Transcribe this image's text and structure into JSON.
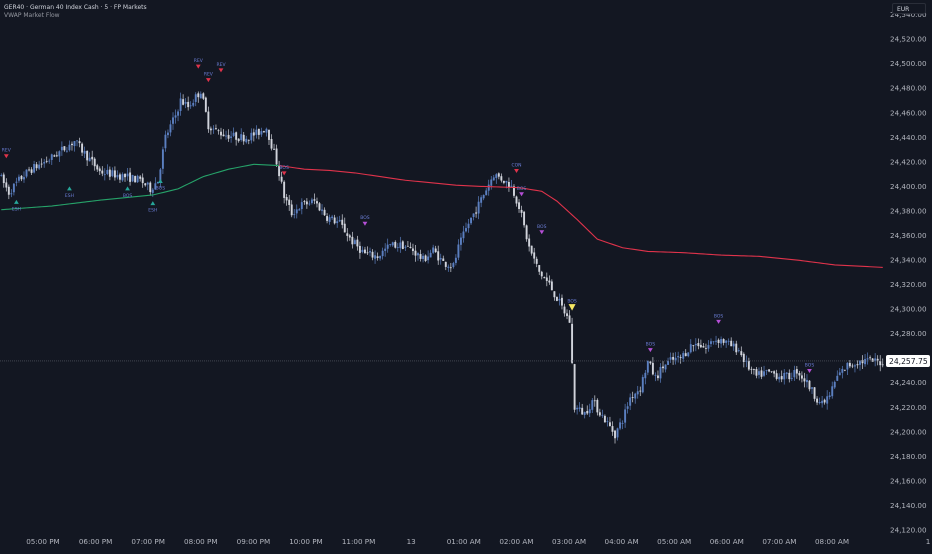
{
  "header": {
    "symbol_line": "GER40 · German 40 Index Cash · 5 · FP Markets",
    "indicator_name": "VWAP Market Flow",
    "currency": "EUR"
  },
  "colors": {
    "background": "#131722",
    "candle_up": "#5b7fc0",
    "candle_down": "#d1d4dc",
    "vwap_bull": "#26a269",
    "vwap_bear": "#e0334b",
    "signal_up": "#26a69a",
    "signal_down": "#e0334b",
    "signal_label": "#6c7fd8",
    "signal_purple": "#b54fd6",
    "highlight": "#f5e663",
    "axis_text": "#b2b5be"
  },
  "chart_data": {
    "type": "candlestick",
    "y_axis": {
      "ticks": [
        "24,540.00",
        "24,520.00",
        "24,500.00",
        "24,480.00",
        "24,460.00",
        "24,440.00",
        "24,420.00",
        "24,400.00",
        "24,380.00",
        "24,360.00",
        "24,340.00",
        "24,320.00",
        "24,300.00",
        "24,280.00",
        "24,260.00",
        "24,240.00",
        "24,220.00",
        "24,200.00",
        "24,180.00",
        "24,160.00",
        "24,140.00",
        "24,120.00"
      ],
      "range": [
        24120,
        24547
      ]
    },
    "x_axis": {
      "ticks": [
        "05:00 PM",
        "06:00 PM",
        "07:00 PM",
        "08:00 PM",
        "09:00 PM",
        "10:00 PM",
        "11:00 PM",
        "13",
        "01:00 AM",
        "02:00 AM",
        "03:00 AM",
        "04:00 AM",
        "05:00 AM",
        "06:00 AM",
        "07:00 AM",
        "08:00 AM",
        "1"
      ]
    },
    "current_price": {
      "value": 24257.75,
      "label": "24,257.75"
    },
    "price_anchors": [
      [
        0,
        24410
      ],
      [
        4,
        24395
      ],
      [
        8,
        24405
      ],
      [
        12,
        24413
      ],
      [
        20,
        24422
      ],
      [
        30,
        24437
      ],
      [
        40,
        24412
      ],
      [
        50,
        24408
      ],
      [
        56,
        24405
      ],
      [
        60,
        24398
      ],
      [
        63,
        24405
      ],
      [
        66,
        24440
      ],
      [
        70,
        24458
      ],
      [
        72,
        24470
      ],
      [
        75,
        24465
      ],
      [
        80,
        24478
      ],
      [
        83,
        24450
      ],
      [
        86,
        24445
      ],
      [
        90,
        24442
      ],
      [
        95,
        24440
      ],
      [
        98,
        24440
      ],
      [
        102,
        24443
      ],
      [
        106,
        24448
      ],
      [
        110,
        24420
      ],
      [
        113,
        24392
      ],
      [
        116,
        24378
      ],
      [
        120,
        24385
      ],
      [
        125,
        24388
      ],
      [
        130,
        24375
      ],
      [
        135,
        24370
      ],
      [
        140,
        24355
      ],
      [
        145,
        24345
      ],
      [
        150,
        24343
      ],
      [
        155,
        24352
      ],
      [
        160,
        24352
      ],
      [
        164,
        24348
      ],
      [
        168,
        24340
      ],
      [
        172,
        24348
      ],
      [
        176,
        24338
      ],
      [
        180,
        24335
      ],
      [
        182,
        24350
      ],
      [
        186,
        24370
      ],
      [
        190,
        24385
      ],
      [
        193,
        24398
      ],
      [
        196,
        24410
      ],
      [
        200,
        24405
      ],
      [
        203,
        24400
      ],
      [
        206,
        24384
      ],
      [
        210,
        24350
      ],
      [
        214,
        24330
      ],
      [
        218,
        24320
      ],
      [
        222,
        24305
      ],
      [
        226,
        24290
      ],
      [
        228,
        24220
      ],
      [
        232,
        24215
      ],
      [
        235,
        24225
      ],
      [
        240,
        24210
      ],
      [
        244,
        24198
      ],
      [
        247,
        24210
      ],
      [
        250,
        24228
      ],
      [
        254,
        24236
      ],
      [
        257,
        24257
      ],
      [
        260,
        24244
      ],
      [
        263,
        24253
      ],
      [
        266,
        24258
      ],
      [
        270,
        24260
      ],
      [
        274,
        24270
      ],
      [
        277,
        24272
      ],
      [
        280,
        24268
      ],
      [
        283,
        24275
      ],
      [
        286,
        24275
      ],
      [
        290,
        24270
      ],
      [
        293,
        24267
      ],
      [
        296,
        24255
      ],
      [
        300,
        24245
      ],
      [
        303,
        24248
      ],
      [
        306,
        24248
      ],
      [
        310,
        24245
      ],
      [
        313,
        24245
      ],
      [
        316,
        24250
      ],
      [
        320,
        24240
      ],
      [
        323,
        24230
      ],
      [
        326,
        24222
      ],
      [
        329,
        24230
      ],
      [
        332,
        24245
      ],
      [
        336,
        24254
      ],
      [
        340,
        24257
      ],
      [
        344,
        24258
      ],
      [
        349,
        24257
      ]
    ],
    "vwap_anchors": [
      [
        0,
        24381
      ],
      [
        20,
        24384
      ],
      [
        40,
        24389
      ],
      [
        60,
        24393
      ],
      [
        70,
        24398
      ],
      [
        80,
        24408
      ],
      [
        90,
        24414
      ],
      [
        100,
        24418
      ],
      [
        110,
        24417
      ],
      [
        120,
        24414
      ],
      [
        130,
        24413
      ],
      [
        140,
        24411
      ],
      [
        150,
        24408
      ],
      [
        160,
        24405
      ],
      [
        170,
        24403
      ],
      [
        180,
        24401
      ],
      [
        190,
        24400
      ],
      [
        205,
        24399
      ],
      [
        214,
        24396
      ],
      [
        220,
        24388
      ],
      [
        228,
        24373
      ],
      [
        236,
        24357
      ],
      [
        246,
        24350
      ],
      [
        256,
        24347
      ],
      [
        270,
        24346
      ],
      [
        285,
        24344
      ],
      [
        300,
        24343
      ],
      [
        315,
        24340
      ],
      [
        330,
        24336
      ],
      [
        349,
        24334
      ]
    ],
    "vwap_color_switch_index": 110,
    "num_candles": 350,
    "signals": [
      {
        "index": 2,
        "price": 24425,
        "label": "REV",
        "dir": "down",
        "color": "#e0334b"
      },
      {
        "index": 6,
        "price": 24387,
        "label": "ESH",
        "dir": "up",
        "color": "#26a69a"
      },
      {
        "index": 27,
        "price": 24398,
        "label": "ESH",
        "dir": "up",
        "color": "#26a69a"
      },
      {
        "index": 50,
        "price": 24398,
        "label": "BOS",
        "dir": "up",
        "color": "#26a69a"
      },
      {
        "index": 60,
        "price": 24386,
        "label": "ESH",
        "dir": "up",
        "color": "#26a69a"
      },
      {
        "index": 63,
        "price": 24404,
        "label": "BOS",
        "dir": "up",
        "color": "#26a69a"
      },
      {
        "index": 78,
        "price": 24498,
        "label": "REV",
        "dir": "down",
        "color": "#e0334b"
      },
      {
        "index": 82,
        "price": 24487,
        "label": "REV",
        "dir": "down",
        "color": "#e0334b"
      },
      {
        "index": 87,
        "price": 24495,
        "label": "REV",
        "dir": "down",
        "color": "#e0334b"
      },
      {
        "index": 112,
        "price": 24411,
        "label": "BOS",
        "dir": "down",
        "color": "#e0334b"
      },
      {
        "index": 144,
        "price": 24370,
        "label": "BOS",
        "dir": "down",
        "color": "#b54fd6"
      },
      {
        "index": 204,
        "price": 24413,
        "label": "CON",
        "dir": "down",
        "color": "#e0334b"
      },
      {
        "index": 206,
        "price": 24394,
        "label": "BOS",
        "dir": "down",
        "color": "#b54fd6"
      },
      {
        "index": 214,
        "price": 24363,
        "label": "BOS",
        "dir": "down",
        "color": "#b54fd6"
      },
      {
        "index": 226,
        "price": 24302,
        "label": "BOS",
        "dir": "down",
        "color": "#f5e663"
      },
      {
        "index": 257,
        "price": 24267,
        "label": "BOS",
        "dir": "down",
        "color": "#b54fd6"
      },
      {
        "index": 284,
        "price": 24290,
        "label": "BOS",
        "dir": "down",
        "color": "#b54fd6"
      },
      {
        "index": 320,
        "price": 24250,
        "label": "BOS",
        "dir": "down",
        "color": "#b54fd6"
      }
    ]
  }
}
